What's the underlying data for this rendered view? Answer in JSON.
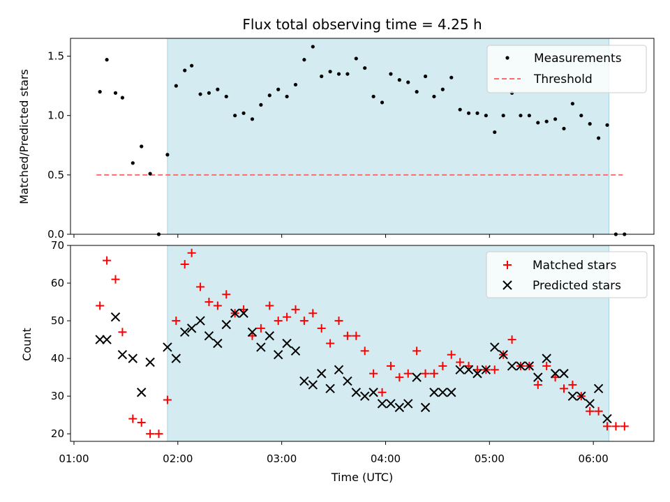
{
  "chart_data": [
    {
      "type": "scatter",
      "title": "Flux total observing time = 4.25 h",
      "ylabel": "Matched/Predicted stars",
      "xlabel": "",
      "xlim": [
        "00:58",
        "06:35"
      ],
      "ylim": [
        0,
        1.65
      ],
      "yticks": [
        0.0,
        0.5,
        1.0,
        1.5
      ],
      "ytick_labels": [
        "0.0",
        "0.5",
        "1.0",
        "1.5"
      ],
      "shaded_interval": {
        "x0": "01:54",
        "x1": "06:09",
        "color": "#d3ebf1"
      },
      "legend_position": "top-right",
      "series": [
        {
          "name": "Measurements",
          "kind": "points",
          "color": "#000000",
          "points": [
            [
              "01:15",
              1.2
            ],
            [
              "01:19",
              1.47
            ],
            [
              "01:24",
              1.19
            ],
            [
              "01:28",
              1.15
            ],
            [
              "01:34",
              0.6
            ],
            [
              "01:39",
              0.74
            ],
            [
              "01:44",
              0.51
            ],
            [
              "01:49",
              0.0
            ],
            [
              "01:54",
              0.67
            ],
            [
              "01:59",
              1.25
            ],
            [
              "02:04",
              1.38
            ],
            [
              "02:08",
              1.42
            ],
            [
              "02:13",
              1.18
            ],
            [
              "02:18",
              1.19
            ],
            [
              "02:23",
              1.22
            ],
            [
              "02:28",
              1.16
            ],
            [
              "02:33",
              1.0
            ],
            [
              "02:38",
              1.02
            ],
            [
              "02:43",
              0.97
            ],
            [
              "02:48",
              1.09
            ],
            [
              "02:53",
              1.17
            ],
            [
              "02:58",
              1.22
            ],
            [
              "03:03",
              1.16
            ],
            [
              "03:08",
              1.26
            ],
            [
              "03:13",
              1.47
            ],
            [
              "03:18",
              1.58
            ],
            [
              "03:23",
              1.33
            ],
            [
              "03:28",
              1.37
            ],
            [
              "03:33",
              1.35
            ],
            [
              "03:38",
              1.35
            ],
            [
              "03:43",
              1.48
            ],
            [
              "03:48",
              1.4
            ],
            [
              "03:53",
              1.16
            ],
            [
              "03:58",
              1.11
            ],
            [
              "04:03",
              1.35
            ],
            [
              "04:08",
              1.3
            ],
            [
              "04:13",
              1.28
            ],
            [
              "04:18",
              1.2
            ],
            [
              "04:23",
              1.33
            ],
            [
              "04:28",
              1.16
            ],
            [
              "04:33",
              1.22
            ],
            [
              "04:38",
              1.32
            ],
            [
              "04:43",
              1.05
            ],
            [
              "04:48",
              1.02
            ],
            [
              "04:53",
              1.02
            ],
            [
              "04:58",
              1.0
            ],
            [
              "05:03",
              0.86
            ],
            [
              "05:08",
              1.0
            ],
            [
              "05:13",
              1.19
            ],
            [
              "05:18",
              1.0
            ],
            [
              "05:23",
              1.0
            ],
            [
              "05:28",
              0.94
            ],
            [
              "05:33",
              0.95
            ],
            [
              "05:38",
              0.97
            ],
            [
              "05:43",
              0.89
            ],
            [
              "05:48",
              1.1
            ],
            [
              "05:53",
              1.0
            ],
            [
              "05:58",
              0.93
            ],
            [
              "06:03",
              0.81
            ],
            [
              "06:08",
              0.92
            ],
            [
              "06:13",
              0.0
            ],
            [
              "06:18",
              0.0
            ]
          ]
        },
        {
          "name": "Threshold",
          "kind": "dashed-line",
          "color": "#ff6b6b",
          "points": [
            [
              "01:13",
              0.5
            ],
            [
              "06:17",
              0.5
            ]
          ]
        }
      ]
    },
    {
      "type": "scatter",
      "title": "",
      "ylabel": "Count",
      "xlabel": "Time (UTC)",
      "xlim": [
        "00:58",
        "06:35"
      ],
      "ylim": [
        18,
        70
      ],
      "yticks": [
        20,
        30,
        40,
        50,
        60,
        70
      ],
      "ytick_labels": [
        "20",
        "30",
        "40",
        "50",
        "60",
        "70"
      ],
      "xticks": [
        "01:00",
        "02:00",
        "03:00",
        "04:00",
        "05:00",
        "06:00"
      ],
      "xtick_labels": [
        "01:00",
        "02:00",
        "03:00",
        "04:00",
        "05:00",
        "06:00"
      ],
      "shaded_interval": {
        "x0": "01:54",
        "x1": "06:09",
        "color": "#d3ebf1"
      },
      "legend_position": "top-right",
      "series": [
        {
          "name": "Matched stars",
          "kind": "plus",
          "color": "#ff0000",
          "points": [
            [
              "01:15",
              54
            ],
            [
              "01:19",
              66
            ],
            [
              "01:24",
              61
            ],
            [
              "01:28",
              47
            ],
            [
              "01:34",
              24
            ],
            [
              "01:39",
              23
            ],
            [
              "01:44",
              20
            ],
            [
              "01:49",
              20
            ],
            [
              "01:54",
              29
            ],
            [
              "01:59",
              50
            ],
            [
              "02:04",
              65
            ],
            [
              "02:08",
              68
            ],
            [
              "02:13",
              59
            ],
            [
              "02:18",
              55
            ],
            [
              "02:23",
              54
            ],
            [
              "02:28",
              57
            ],
            [
              "02:33",
              52
            ],
            [
              "02:38",
              53
            ],
            [
              "02:43",
              46
            ],
            [
              "02:48",
              48
            ],
            [
              "02:53",
              54
            ],
            [
              "02:58",
              50
            ],
            [
              "03:03",
              51
            ],
            [
              "03:08",
              53
            ],
            [
              "03:13",
              50
            ],
            [
              "03:18",
              52
            ],
            [
              "03:23",
              48
            ],
            [
              "03:28",
              44
            ],
            [
              "03:33",
              50
            ],
            [
              "03:38",
              46
            ],
            [
              "03:43",
              46
            ],
            [
              "03:48",
              42
            ],
            [
              "03:53",
              36
            ],
            [
              "03:58",
              31
            ],
            [
              "04:03",
              38
            ],
            [
              "04:08",
              35
            ],
            [
              "04:13",
              36
            ],
            [
              "04:18",
              42
            ],
            [
              "04:23",
              36
            ],
            [
              "04:28",
              36
            ],
            [
              "04:33",
              38
            ],
            [
              "04:38",
              41
            ],
            [
              "04:43",
              39
            ],
            [
              "04:48",
              38
            ],
            [
              "04:53",
              37
            ],
            [
              "04:58",
              37
            ],
            [
              "05:03",
              37
            ],
            [
              "05:08",
              41
            ],
            [
              "05:13",
              45
            ],
            [
              "05:18",
              38
            ],
            [
              "05:23",
              38
            ],
            [
              "05:28",
              33
            ],
            [
              "05:33",
              38
            ],
            [
              "05:38",
              35
            ],
            [
              "05:43",
              32
            ],
            [
              "05:48",
              33
            ],
            [
              "05:53",
              30
            ],
            [
              "05:58",
              26
            ],
            [
              "06:03",
              26
            ],
            [
              "06:08",
              22
            ],
            [
              "06:13",
              22
            ],
            [
              "06:18",
              22
            ]
          ]
        },
        {
          "name": "Predicted stars",
          "kind": "x",
          "color": "#000000",
          "points": [
            [
              "01:15",
              45
            ],
            [
              "01:19",
              45
            ],
            [
              "01:24",
              51
            ],
            [
              "01:28",
              41
            ],
            [
              "01:34",
              40
            ],
            [
              "01:39",
              31
            ],
            [
              "01:44",
              39
            ],
            [
              "01:54",
              43
            ],
            [
              "01:59",
              40
            ],
            [
              "02:04",
              47
            ],
            [
              "02:08",
              48
            ],
            [
              "02:13",
              50
            ],
            [
              "02:18",
              46
            ],
            [
              "02:23",
              44
            ],
            [
              "02:28",
              49
            ],
            [
              "02:33",
              52
            ],
            [
              "02:38",
              52
            ],
            [
              "02:43",
              47
            ],
            [
              "02:48",
              43
            ],
            [
              "02:53",
              46
            ],
            [
              "02:58",
              41
            ],
            [
              "03:03",
              44
            ],
            [
              "03:08",
              42
            ],
            [
              "03:13",
              34
            ],
            [
              "03:18",
              33
            ],
            [
              "03:23",
              36
            ],
            [
              "03:28",
              32
            ],
            [
              "03:33",
              37
            ],
            [
              "03:38",
              34
            ],
            [
              "03:43",
              31
            ],
            [
              "03:48",
              30
            ],
            [
              "03:53",
              31
            ],
            [
              "03:58",
              28
            ],
            [
              "04:03",
              28
            ],
            [
              "04:08",
              27
            ],
            [
              "04:13",
              28
            ],
            [
              "04:18",
              35
            ],
            [
              "04:23",
              27
            ],
            [
              "04:28",
              31
            ],
            [
              "04:33",
              31
            ],
            [
              "04:38",
              31
            ],
            [
              "04:43",
              37
            ],
            [
              "04:48",
              37
            ],
            [
              "04:53",
              36
            ],
            [
              "04:58",
              37
            ],
            [
              "05:03",
              43
            ],
            [
              "05:08",
              41
            ],
            [
              "05:13",
              38
            ],
            [
              "05:18",
              38
            ],
            [
              "05:23",
              38
            ],
            [
              "05:28",
              35
            ],
            [
              "05:33",
              40
            ],
            [
              "05:38",
              36
            ],
            [
              "05:43",
              36
            ],
            [
              "05:48",
              30
            ],
            [
              "05:53",
              30
            ],
            [
              "05:58",
              28
            ],
            [
              "06:03",
              32
            ],
            [
              "06:08",
              24
            ]
          ]
        }
      ]
    }
  ]
}
